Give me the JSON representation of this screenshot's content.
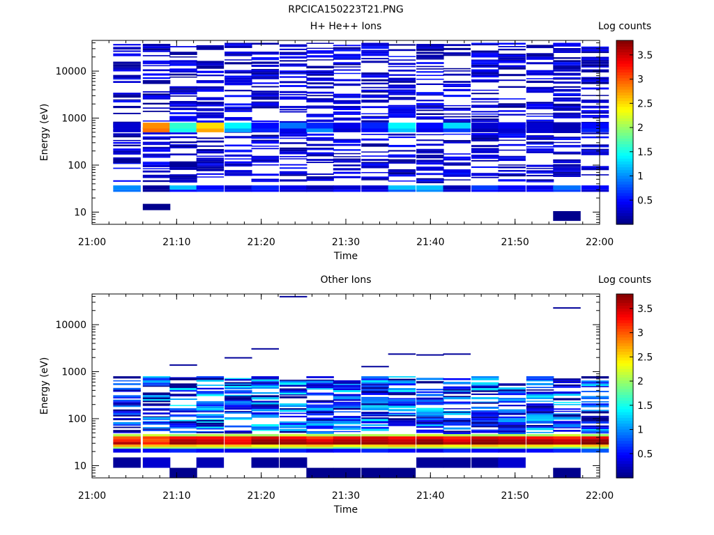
{
  "figure_title": "RPCICA150223T21.PNG",
  "chart_data": [
    {
      "type": "heatmap",
      "title": "H+ He++ Ions",
      "xlabel": "Time",
      "ylabel": "Energy (eV)",
      "xlim": [
        "21:00",
        "22:00"
      ],
      "x_ticks": [
        "21:00",
        "21:10",
        "21:20",
        "21:30",
        "21:40",
        "21:50",
        "22:00"
      ],
      "y_scale": "log",
      "ylim": [
        5.5,
        45000
      ],
      "y_ticks": [
        "10",
        "100",
        "1000",
        "10000"
      ],
      "colorbar": {
        "label": "Log counts",
        "range": [
          0,
          3.8
        ],
        "ticks": [
          "0.5",
          "1",
          "1.5",
          "2",
          "2.5",
          "3",
          "3.5"
        ],
        "colormap": "jet"
      },
      "time_bins_start": [
        "21:02:30",
        "21:06:00",
        "21:09:10",
        "21:12:20",
        "21:15:40",
        "21:18:50",
        "21:22:10",
        "21:25:20",
        "21:28:30",
        "21:31:50",
        "21:35:00",
        "21:38:20",
        "21:41:30",
        "21:44:50",
        "21:48:00",
        "21:51:20",
        "21:54:30",
        "21:57:50"
      ],
      "bands": [
        {
          "e_lo": 600,
          "e_hi": 800,
          "values": [
            0.3,
            2.8,
            1.6,
            2.5,
            1.4,
            0.5,
            0.9,
            0.6,
            0.4,
            0.6,
            1.4,
            0.5,
            1.3,
            0.3,
            0.4,
            0.3,
            0.2,
            0.5
          ]
        },
        {
          "e_lo": 500,
          "e_hi": 600,
          "values": [
            0.3,
            2.9,
            1.5,
            2.7,
            1.1,
            0.6,
            0.4,
            1.0,
            0.3,
            0.5,
            1.2,
            0.4,
            0.7,
            0.2,
            0.3,
            0.3,
            0.2,
            0.6
          ]
        },
        {
          "e_lo": 30,
          "e_hi": 37,
          "values": [
            1.0,
            0.1,
            1.2,
            0.5,
            0.3,
            0.6,
            0.4,
            0.2,
            0.3,
            0.3,
            1.2,
            1.2,
            0.2,
            0.7,
            0.5,
            0.4,
            0.9,
            0.5
          ]
        },
        {
          "e_lo": 27,
          "e_hi": 30,
          "values": [
            0.9,
            0.1,
            0.5,
            0.6,
            0.4,
            0.5,
            0.3,
            0.3,
            0.5,
            0.4,
            0.8,
            1.0,
            0.3,
            0.5,
            0.4,
            0.5,
            0.7,
            0.3
          ]
        }
      ],
      "sparse_counts": "scattered 0.1-0.8 log counts across 40-40000 eV; isolated low bins near 12 eV (21:06-21:08) and 8 eV (21:54-21:56)"
    },
    {
      "type": "heatmap",
      "title": "Other Ions",
      "xlabel": "Time",
      "ylabel": "Energy (eV)",
      "xlim": [
        "21:00",
        "22:00"
      ],
      "x_ticks": [
        "21:00",
        "21:10",
        "21:20",
        "21:30",
        "21:40",
        "21:50",
        "22:00"
      ],
      "y_scale": "log",
      "ylim": [
        5.5,
        45000
      ],
      "y_ticks": [
        "10",
        "100",
        "1000",
        "10000"
      ],
      "colorbar": {
        "label": "Log counts",
        "range": [
          0,
          3.8
        ],
        "ticks": [
          "0.5",
          "1",
          "1.5",
          "2",
          "2.5",
          "3",
          "3.5"
        ],
        "colormap": "jet"
      },
      "time_bins_start": [
        "21:02:30",
        "21:06:00",
        "21:09:10",
        "21:12:20",
        "21:15:40",
        "21:18:50",
        "21:22:10",
        "21:25:20",
        "21:28:30",
        "21:31:50",
        "21:35:00",
        "21:38:20",
        "21:41:30",
        "21:44:50",
        "21:48:00",
        "21:51:20",
        "21:54:30",
        "21:57:50"
      ],
      "bands": [
        {
          "e_lo": 42,
          "e_hi": 47,
          "values": [
            2.1,
            2.2,
            2.0,
            2.1,
            2.1,
            2.0,
            2.2,
            2.1,
            2.0,
            2.1,
            2.1,
            2.2,
            2.1,
            2.0,
            2.1,
            2.0,
            2.2,
            2.0
          ]
        },
        {
          "e_lo": 37,
          "e_hi": 42,
          "values": [
            3.0,
            3.1,
            3.3,
            3.3,
            3.2,
            3.5,
            3.3,
            3.1,
            3.4,
            3.5,
            3.3,
            3.4,
            3.2,
            3.5,
            3.4,
            3.3,
            3.2,
            3.4
          ]
        },
        {
          "e_lo": 32,
          "e_hi": 37,
          "values": [
            3.2,
            3.0,
            3.6,
            3.5,
            3.3,
            3.7,
            3.6,
            3.4,
            3.6,
            3.6,
            3.5,
            3.7,
            3.4,
            3.7,
            3.6,
            3.6,
            3.5,
            3.7
          ]
        },
        {
          "e_lo": 28,
          "e_hi": 32,
          "values": [
            3.6,
            3.2,
            3.7,
            3.6,
            3.4,
            3.8,
            3.7,
            3.6,
            3.7,
            3.7,
            3.6,
            3.8,
            3.6,
            3.8,
            3.7,
            3.7,
            3.6,
            3.8
          ]
        },
        {
          "e_lo": 25,
          "e_hi": 28,
          "values": [
            2.7,
            2.6,
            2.6,
            2.5,
            2.6,
            2.4,
            2.5,
            2.6,
            2.4,
            2.5,
            2.6,
            2.5,
            2.4,
            2.6,
            2.5,
            2.5,
            2.4,
            2.6
          ]
        },
        {
          "e_lo": 23,
          "e_hi": 25,
          "values": [
            2.0,
            2.0,
            2.0,
            2.0,
            2.0,
            2.0,
            2.0,
            2.0,
            1.8,
            2.0,
            2.0,
            2.0,
            2.0,
            2.0,
            2.0,
            2.0,
            1.8,
            2.0
          ]
        },
        {
          "e_lo": 19,
          "e_hi": 23,
          "values": [
            0.4,
            0.5,
            0.6,
            0.5,
            0.4,
            0.5,
            0.6,
            0.4,
            0.5,
            0.6,
            0.5,
            0.4,
            0.6,
            0.5,
            0.4,
            0.5,
            0.6,
            0.8
          ]
        },
        {
          "e_lo": 9,
          "e_hi": 15,
          "values": [
            0.1,
            0.3,
            0.0,
            0.2,
            0.0,
            0.1,
            0.1,
            0.0,
            0.0,
            0.0,
            0.0,
            0.1,
            0.1,
            0.1,
            0.3,
            0.0,
            0.0,
            0.0
          ]
        }
      ],
      "sparse_counts": "scattered 0.2-1.5 log counts between 50 and 800 eV; isolated high-energy bins near 1400, 2000, 3000, 2400 and 23000 eV"
    }
  ]
}
